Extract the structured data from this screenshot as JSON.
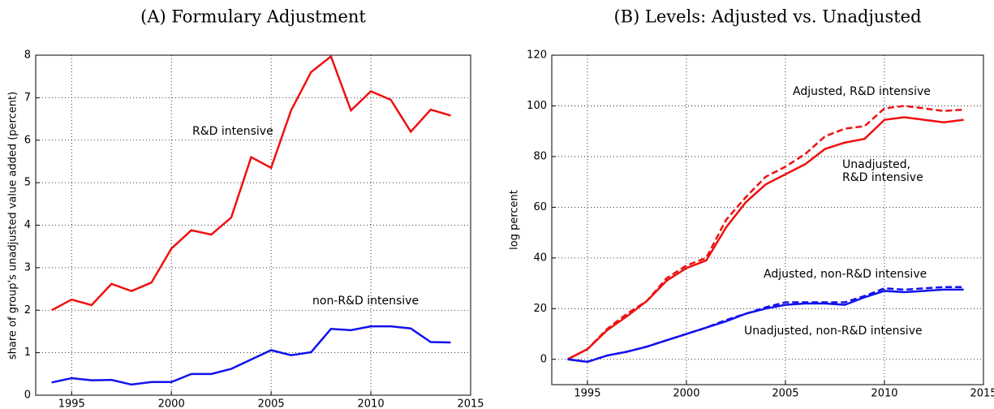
{
  "chart_data": [
    {
      "type": "line",
      "title": "(A) Formulary Adjustment",
      "y_label": "share of group's unadjusted value added (percent)",
      "x": [
        1994,
        1995,
        1996,
        1997,
        1998,
        1999,
        2000,
        2001,
        2002,
        2003,
        2004,
        2005,
        2006,
        2007,
        2008,
        2009,
        2010,
        2011,
        2012,
        2013,
        2014
      ],
      "series": [
        {
          "name": "R&D intensive",
          "color": "#ee1111",
          "linestyle": "solid",
          "values": [
            2.0,
            2.25,
            2.12,
            2.62,
            2.45,
            2.65,
            3.45,
            3.88,
            3.78,
            4.18,
            5.6,
            5.35,
            6.7,
            7.6,
            7.97,
            6.7,
            7.15,
            6.95,
            6.2,
            6.72,
            6.58
          ]
        },
        {
          "name": "non-R&D intensive",
          "color": "#1111ee",
          "linestyle": "solid",
          "values": [
            0.3,
            0.4,
            0.35,
            0.36,
            0.25,
            0.31,
            0.31,
            0.5,
            0.5,
            0.62,
            0.84,
            1.06,
            0.94,
            1.01,
            1.56,
            1.53,
            1.62,
            1.62,
            1.57,
            1.25,
            1.24
          ]
        }
      ],
      "xlim": [
        1993.2,
        2015
      ],
      "xticks": [
        1995,
        2000,
        2005,
        2010,
        2015
      ],
      "ylim": [
        0,
        8
      ],
      "yticks": [
        0,
        1,
        2,
        3,
        4,
        5,
        6,
        7,
        8
      ],
      "grid": true
    },
    {
      "type": "line",
      "title": "(B) Levels: Adjusted vs. Unadjusted",
      "y_label": "log percent",
      "annotations": [
        "Adjusted, R&D intensive",
        "Unadjusted,",
        "R&D intensive",
        "Adjusted, non-R&D intensive",
        "Unadjusted, non-R&D intensive"
      ],
      "x": [
        1994,
        1995,
        1996,
        1997,
        1998,
        1999,
        2000,
        2001,
        2002,
        2003,
        2004,
        2005,
        2006,
        2007,
        2008,
        2009,
        2010,
        2011,
        2012,
        2013,
        2014
      ],
      "series": [
        {
          "color": "#ee1111",
          "linestyle": "dashed",
          "values": [
            0,
            4,
            12,
            18,
            23,
            32,
            37,
            40,
            55,
            64,
            72,
            76,
            81,
            88,
            91,
            92,
            99,
            100,
            99,
            98,
            98.5
          ]
        },
        {
          "color": "#ee1111",
          "linestyle": "solid",
          "values": [
            0,
            4,
            11.5,
            17,
            23,
            31,
            36,
            39,
            52,
            62,
            69,
            73,
            77,
            83,
            85.5,
            87,
            94.5,
            95.5,
            94.5,
            93.5,
            94.5
          ]
        },
        {
          "color": "#1111ee",
          "linestyle": "dashed",
          "values": [
            0,
            -1,
            1.5,
            3,
            5,
            7.5,
            10,
            12.5,
            15.5,
            18,
            20.5,
            22.5,
            22.5,
            22.5,
            22.5,
            25,
            28,
            27.5,
            28,
            28.5,
            28.5
          ]
        },
        {
          "color": "#1111ee",
          "linestyle": "solid",
          "values": [
            0,
            -1,
            1.5,
            3,
            5,
            7.5,
            10,
            12.5,
            15,
            18,
            20,
            21.5,
            22,
            22,
            21.5,
            24.5,
            27,
            26.5,
            27,
            27.5,
            27.5
          ]
        }
      ],
      "xlim": [
        1993.2,
        2015
      ],
      "xticks": [
        1995,
        2000,
        2005,
        2010,
        2015
      ],
      "ylim": [
        -10,
        120
      ],
      "yticks": [
        0,
        20,
        40,
        60,
        80,
        100,
        120
      ],
      "grid": true
    }
  ]
}
